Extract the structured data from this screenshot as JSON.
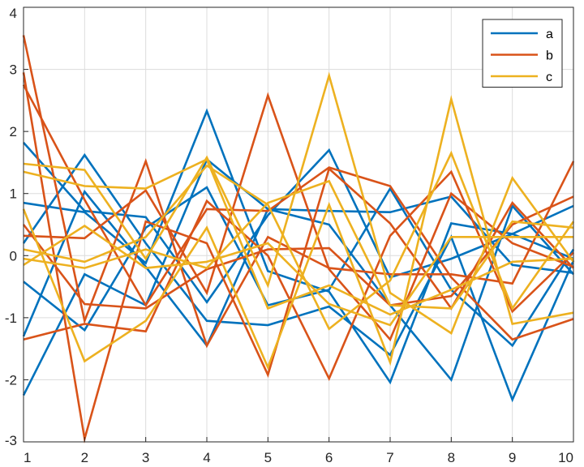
{
  "chart_data": {
    "type": "line",
    "title": "",
    "xlabel": "",
    "ylabel": "",
    "xlim": [
      1,
      10
    ],
    "ylim": [
      -3,
      4
    ],
    "grid": true,
    "x": [
      1,
      2,
      3,
      4,
      5,
      6,
      7,
      8,
      9,
      10
    ],
    "xticks": [
      "1",
      "2",
      "3",
      "4",
      "5",
      "6",
      "7",
      "8",
      "9",
      "10"
    ],
    "yticks": [
      "-3",
      "-2",
      "-1",
      "0",
      "1",
      "2",
      "3",
      "4"
    ],
    "legend": {
      "location": "top-right",
      "entries": [
        {
          "label": "a",
          "color": "#0072BD"
        },
        {
          "label": "b",
          "color": "#D95319"
        },
        {
          "label": "c",
          "color": "#EDB120"
        }
      ]
    },
    "series": [
      {
        "group": "a",
        "color": "#0072BD",
        "values": [
          1.82,
          0.72,
          0.62,
          -0.75,
          0.65,
          1.7,
          -0.35,
          -0.05,
          0.35,
          0.8
        ]
      },
      {
        "group": "a",
        "color": "#0072BD",
        "values": [
          0.85,
          0.7,
          -0.12,
          2.33,
          -0.25,
          -0.58,
          -2.04,
          0.52,
          0.35,
          -0.05
        ]
      },
      {
        "group": "a",
        "color": "#0072BD",
        "values": [
          0.2,
          1.62,
          0.2,
          -1.05,
          -1.12,
          -0.82,
          -1.6,
          0.3,
          -2.32,
          -0.08
        ]
      },
      {
        "group": "a",
        "color": "#0072BD",
        "values": [
          -2.25,
          -0.3,
          -0.8,
          1.55,
          0.75,
          0.72,
          0.7,
          0.95,
          -0.15,
          -0.28
        ]
      },
      {
        "group": "a",
        "color": "#0072BD",
        "values": [
          -1.3,
          1.03,
          -0.18,
          -1.45,
          0.75,
          0.5,
          -0.8,
          -2.0,
          0.8,
          -0.3
        ]
      },
      {
        "group": "a",
        "color": "#0072BD",
        "values": [
          -0.42,
          -1.2,
          0.45,
          1.1,
          -0.8,
          -0.55,
          1.08,
          -0.55,
          -1.45,
          0.1
        ]
      },
      {
        "group": "b",
        "color": "#D95319",
        "values": [
          3.55,
          -1.05,
          1.52,
          -1.45,
          0.3,
          -0.2,
          -0.3,
          -0.3,
          -0.45,
          1.52
        ]
      },
      {
        "group": "b",
        "color": "#D95319",
        "values": [
          2.75,
          0.9,
          -0.8,
          0.75,
          0.72,
          1.42,
          1.12,
          -0.35,
          -1.35,
          -1.02
        ]
      },
      {
        "group": "b",
        "color": "#D95319",
        "values": [
          -1.35,
          -1.1,
          -1.22,
          0.88,
          0.0,
          -1.98,
          0.32,
          1.35,
          -0.9,
          0.05
        ]
      },
      {
        "group": "b",
        "color": "#D95319",
        "values": [
          0.32,
          0.28,
          1.05,
          -0.6,
          2.58,
          -0.22,
          -1.35,
          1.0,
          0.2,
          -0.18
        ]
      },
      {
        "group": "b",
        "color": "#D95319",
        "values": [
          2.95,
          -2.95,
          0.55,
          0.2,
          -1.92,
          1.4,
          0.52,
          -0.85,
          0.85,
          -0.2
        ]
      },
      {
        "group": "b",
        "color": "#D95319",
        "values": [
          0.5,
          -0.78,
          -0.85,
          -0.22,
          0.1,
          0.12,
          -0.8,
          -0.65,
          0.5,
          0.95
        ]
      },
      {
        "group": "c",
        "color": "#EDB120",
        "values": [
          1.48,
          1.38,
          -0.05,
          1.58,
          -0.48,
          2.9,
          -0.6,
          -1.25,
          1.25,
          -0.1
        ]
      },
      {
        "group": "c",
        "color": "#EDB120",
        "values": [
          0.75,
          -1.7,
          -1.05,
          0.45,
          -1.8,
          0.82,
          -1.72,
          2.52,
          -1.1,
          -0.92
        ]
      },
      {
        "group": "c",
        "color": "#EDB120",
        "values": [
          0.1,
          -0.1,
          0.3,
          1.45,
          0.82,
          -1.18,
          -0.4,
          1.65,
          -0.85,
          0.55
        ]
      },
      {
        "group": "c",
        "color": "#EDB120",
        "values": [
          -0.05,
          -0.2,
          0.1,
          -0.2,
          0.85,
          1.2,
          -0.8,
          -0.85,
          0.55,
          0.45
        ]
      },
      {
        "group": "c",
        "color": "#EDB120",
        "values": [
          1.35,
          1.12,
          1.08,
          1.55,
          -0.85,
          -0.48,
          -0.95,
          -0.55,
          -0.1,
          -0.05
        ]
      },
      {
        "group": "c",
        "color": "#EDB120",
        "values": [
          -0.15,
          0.48,
          -0.2,
          -0.1,
          0.2,
          -0.78,
          -1.12,
          0.3,
          0.3,
          0.3
        ]
      }
    ]
  }
}
